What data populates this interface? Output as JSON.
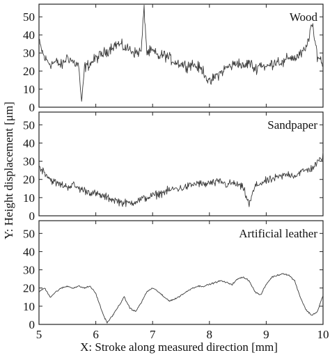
{
  "figure": {
    "ylabel": "Y: Height displacement [μm]",
    "xlabel": "X: Stroke along measured direction [mm]"
  },
  "chart_data": [
    {
      "type": "line",
      "panel": "top",
      "title": "Wood",
      "xlim": [
        5,
        10
      ],
      "ylim": [
        0,
        57
      ],
      "yticks": [
        0,
        10,
        20,
        30,
        40,
        50
      ],
      "grid": false,
      "series": [
        {
          "x": [
            5.0,
            5.1,
            5.2,
            5.3,
            5.4,
            5.5,
            5.6,
            5.7,
            5.75,
            5.8,
            5.9,
            6.0,
            6.1,
            6.2,
            6.3,
            6.4,
            6.5,
            6.6,
            6.7,
            6.8,
            6.85,
            6.9,
            7.0,
            7.1,
            7.2,
            7.3,
            7.4,
            7.5,
            7.6,
            7.7,
            7.8,
            7.9,
            8.0,
            8.1,
            8.2,
            8.3,
            8.4,
            8.5,
            8.6,
            8.7,
            8.8,
            8.9,
            9.0,
            9.1,
            9.2,
            9.3,
            9.4,
            9.5,
            9.6,
            9.7,
            9.8,
            9.9,
            10.0
          ],
          "y": [
            36,
            27,
            24,
            25,
            23,
            28,
            25,
            23,
            1,
            22,
            24,
            27,
            29,
            31,
            34,
            35,
            33,
            32,
            30,
            31,
            55,
            30,
            31,
            28,
            29,
            27,
            25,
            24,
            23,
            24,
            22,
            20,
            13,
            17,
            19,
            22,
            23,
            25,
            22,
            25,
            21,
            24,
            22,
            24,
            26,
            24,
            28,
            27,
            29,
            32,
            46,
            29,
            24
          ]
        }
      ]
    },
    {
      "type": "line",
      "panel": "middle",
      "title": "Sandpaper",
      "xlim": [
        5,
        10
      ],
      "ylim": [
        0,
        57
      ],
      "yticks": [
        0,
        10,
        20,
        30,
        40,
        50
      ],
      "grid": false,
      "series": [
        {
          "x": [
            5.0,
            5.1,
            5.2,
            5.3,
            5.4,
            5.5,
            5.6,
            5.7,
            5.8,
            5.9,
            6.0,
            6.1,
            6.2,
            6.3,
            6.4,
            6.5,
            6.6,
            6.7,
            6.8,
            6.9,
            7.0,
            7.1,
            7.2,
            7.3,
            7.4,
            7.5,
            7.6,
            7.7,
            7.8,
            7.9,
            8.0,
            8.1,
            8.2,
            8.3,
            8.4,
            8.5,
            8.6,
            8.7,
            8.8,
            8.9,
            9.0,
            9.1,
            9.2,
            9.3,
            9.4,
            9.5,
            9.6,
            9.7,
            9.8,
            9.9,
            10.0
          ],
          "y": [
            27,
            24,
            20,
            18,
            17,
            16,
            17,
            15,
            14,
            13,
            12,
            11,
            10,
            9,
            8,
            7,
            7,
            8,
            9,
            10,
            11,
            12,
            13,
            14,
            15,
            15,
            16,
            17,
            18,
            17,
            18,
            18,
            19,
            17,
            18,
            17,
            15,
            6,
            16,
            18,
            19,
            20,
            21,
            22,
            23,
            22,
            24,
            25,
            26,
            29,
            33
          ]
        }
      ]
    },
    {
      "type": "line",
      "panel": "bottom",
      "title": "Artificial leather",
      "xlim": [
        5,
        10
      ],
      "ylim": [
        0,
        57
      ],
      "xticks": [
        5,
        6,
        7,
        8,
        9,
        10
      ],
      "yticks": [
        0,
        10,
        20,
        30,
        40,
        50
      ],
      "grid": false,
      "series": [
        {
          "x": [
            5.0,
            5.1,
            5.2,
            5.3,
            5.4,
            5.5,
            5.6,
            5.7,
            5.8,
            5.9,
            6.0,
            6.1,
            6.15,
            6.2,
            6.25,
            6.3,
            6.4,
            6.5,
            6.6,
            6.7,
            6.8,
            6.9,
            7.0,
            7.1,
            7.2,
            7.3,
            7.4,
            7.5,
            7.6,
            7.7,
            7.8,
            7.9,
            8.0,
            8.1,
            8.2,
            8.3,
            8.4,
            8.5,
            8.6,
            8.7,
            8.8,
            8.9,
            9.0,
            9.1,
            9.2,
            9.3,
            9.4,
            9.5,
            9.6,
            9.7,
            9.8,
            9.9,
            10.0
          ],
          "y": [
            18,
            20,
            15,
            18,
            20,
            21,
            20,
            21,
            20,
            21,
            17,
            8,
            4,
            1,
            3,
            5,
            10,
            15,
            9,
            7,
            12,
            18,
            20,
            18,
            15,
            13,
            14,
            16,
            18,
            20,
            21,
            21,
            22,
            23,
            24,
            23,
            22,
            25,
            26,
            24,
            18,
            16,
            22,
            26,
            27,
            28,
            27,
            24,
            15,
            8,
            5,
            7,
            16
          ]
        }
      ]
    }
  ]
}
